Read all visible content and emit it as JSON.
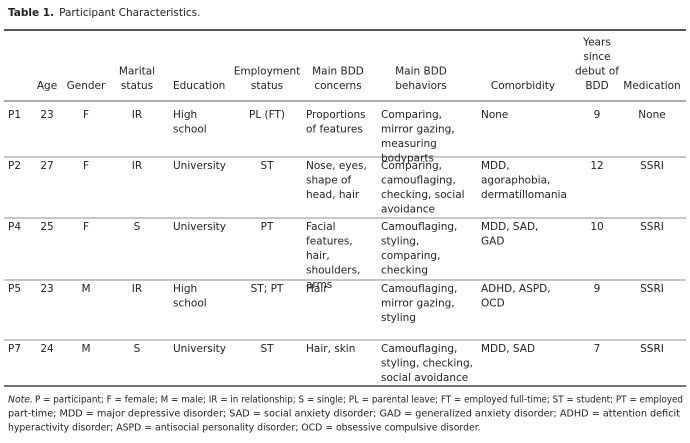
{
  "header": {
    "label": "Table 1.",
    "title": "Participant Characteristics."
  },
  "table": {
    "columns": [
      [
        "Age"
      ],
      [
        "Gender"
      ],
      [
        "Marital",
        "status"
      ],
      [
        "Education"
      ],
      [
        "Employment",
        "status"
      ],
      [
        "Main BDD",
        "concerns"
      ],
      [
        "Main BDD",
        "behaviors"
      ],
      [
        "Comorbidity"
      ],
      [
        "Years",
        "since",
        "debut of",
        "BDD"
      ],
      [
        "Medication"
      ]
    ],
    "rows": [
      {
        "id": "P1",
        "cells": [
          [
            "23"
          ],
          [
            "F"
          ],
          [
            "IR"
          ],
          [
            "High",
            "school"
          ],
          [
            "PL (FT)"
          ],
          [
            "Proportions",
            "of features"
          ],
          [
            "Comparing,",
            "mirror gazing,",
            "measuring",
            "bodyparts"
          ],
          [
            "None"
          ],
          [
            "9"
          ],
          [
            "None"
          ]
        ]
      },
      {
        "id": "P2",
        "cells": [
          [
            "27"
          ],
          [
            "F"
          ],
          [
            "IR"
          ],
          [
            "University"
          ],
          [
            "ST"
          ],
          [
            "Nose, eyes,",
            "shape of",
            "head, hair"
          ],
          [
            "Comparing,",
            "camouflaging,",
            "checking, social",
            "avoidance"
          ],
          [
            "MDD,",
            "agoraphobia,",
            "dermatillomania"
          ],
          [
            "12"
          ],
          [
            "SSRI"
          ]
        ]
      },
      {
        "id": "P4",
        "cells": [
          [
            "25"
          ],
          [
            "F"
          ],
          [
            "S"
          ],
          [
            "University"
          ],
          [
            "PT"
          ],
          [
            "Facial",
            "features,",
            "hair,",
            "shoulders,",
            "arms"
          ],
          [
            "Camouflaging,",
            "styling,",
            "comparing,",
            "checking"
          ],
          [
            "MDD, SAD,",
            "GAD"
          ],
          [
            "10"
          ],
          [
            "SSRI"
          ]
        ]
      },
      {
        "id": "P5",
        "cells": [
          [
            "23"
          ],
          [
            "M"
          ],
          [
            "IR"
          ],
          [
            "High",
            "school"
          ],
          [
            "ST; PT"
          ],
          [
            "Hair"
          ],
          [
            "Camouflaging,",
            "mirror gazing,",
            "styling"
          ],
          [
            "ADHD, ASPD,",
            "OCD"
          ],
          [
            "9"
          ],
          [
            "SSRI"
          ]
        ]
      },
      {
        "id": "P7",
        "cells": [
          [
            "24"
          ],
          [
            "M"
          ],
          [
            "S"
          ],
          [
            "University"
          ],
          [
            "ST"
          ],
          [
            "Hair, skin"
          ],
          [
            "Camouflaging,",
            "styling, checking,",
            "social avoidance"
          ],
          [
            "MDD, SAD"
          ],
          [
            "7"
          ],
          [
            "SSRI"
          ]
        ]
      }
    ]
  },
  "note": {
    "label": "Note.",
    "lines": [
      "P = participant; F = female; M = male; IR = in relationship; S = single; PL = parental leave; FT = employed full-time; ST = student; PT = employed",
      "part-time; MDD = major depressive disorder; SAD = social anxiety disorder; GAD = generalized anxiety disorder; ADHD = attention deficit",
      "hyperactivity disorder; ASPD = antisocial personality disorder; OCD = obsessive compulsive disorder."
    ]
  }
}
